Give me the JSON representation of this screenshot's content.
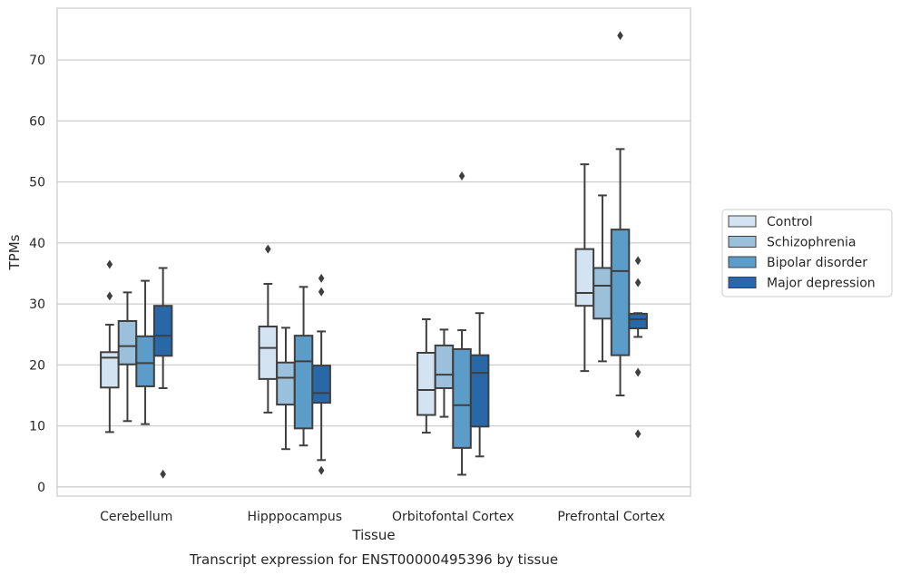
{
  "chart_data": {
    "type": "boxplot",
    "title": "",
    "caption": "Transcript expression for ENST00000495396 by tissue",
    "xlabel": "Tissue",
    "ylabel": "TPMs",
    "ylim": [
      -1.5,
      78.5
    ],
    "yticks": [
      0,
      10,
      20,
      30,
      40,
      50,
      60,
      70
    ],
    "grid": "horizontal",
    "legend_position": "right",
    "categories": [
      "Cerebellum",
      "Hipppocampus",
      "Orbitofontal Cortex",
      "Prefrontal Cortex"
    ],
    "series": [
      {
        "name": "Control",
        "color": "#d3e3f2",
        "boxes": [
          {
            "whislo": 9.0,
            "q1": 16.3,
            "med": 21.2,
            "q3": 22.1,
            "whishi": 26.6,
            "fliers": [
              31.3,
              36.5
            ]
          },
          {
            "whislo": 12.2,
            "q1": 17.7,
            "med": 22.8,
            "q3": 26.3,
            "whishi": 33.3,
            "fliers": [
              39.0
            ]
          },
          {
            "whislo": 8.9,
            "q1": 11.8,
            "med": 15.9,
            "q3": 22.0,
            "whishi": 27.5,
            "fliers": []
          },
          {
            "whislo": 19.0,
            "q1": 29.7,
            "med": 31.8,
            "q3": 39.0,
            "whishi": 52.9,
            "fliers": []
          }
        ]
      },
      {
        "name": "Schizophrenia",
        "color": "#9ac0db",
        "boxes": [
          {
            "whislo": 10.8,
            "q1": 20.1,
            "med": 23.1,
            "q3": 27.2,
            "whishi": 31.9,
            "fliers": []
          },
          {
            "whislo": 6.2,
            "q1": 13.5,
            "med": 17.9,
            "q3": 20.4,
            "whishi": 26.1,
            "fliers": []
          },
          {
            "whislo": 11.5,
            "q1": 16.2,
            "med": 18.4,
            "q3": 23.2,
            "whishi": 25.8,
            "fliers": []
          },
          {
            "whislo": 20.6,
            "q1": 27.6,
            "med": 33.0,
            "q3": 35.9,
            "whishi": 47.8,
            "fliers": []
          }
        ]
      },
      {
        "name": "Bipolar disorder",
        "color": "#5c9cc9",
        "boxes": [
          {
            "whislo": 10.3,
            "q1": 16.5,
            "med": 20.3,
            "q3": 24.7,
            "whishi": 33.8,
            "fliers": []
          },
          {
            "whislo": 6.8,
            "q1": 9.6,
            "med": 20.6,
            "q3": 24.8,
            "whishi": 32.8,
            "fliers": []
          },
          {
            "whislo": 2.0,
            "q1": 6.4,
            "med": 13.4,
            "q3": 22.6,
            "whishi": 25.7,
            "fliers": [
              51.0
            ]
          },
          {
            "whislo": 15.0,
            "q1": 21.6,
            "med": 35.4,
            "q3": 42.2,
            "whishi": 55.4,
            "fliers": [
              74.0
            ]
          }
        ]
      },
      {
        "name": "Major depression",
        "color": "#2968a8",
        "boxes": [
          {
            "whislo": 16.2,
            "q1": 21.5,
            "med": 24.8,
            "q3": 29.7,
            "whishi": 35.9,
            "fliers": [
              2.1
            ]
          },
          {
            "whislo": 4.4,
            "q1": 13.8,
            "med": 15.4,
            "q3": 19.9,
            "whishi": 25.5,
            "fliers": [
              2.7,
              32.0,
              34.2
            ]
          },
          {
            "whislo": 5.0,
            "q1": 9.9,
            "med": 18.7,
            "q3": 21.6,
            "whishi": 28.5,
            "fliers": []
          },
          {
            "whislo": 24.6,
            "q1": 26.0,
            "med": 27.5,
            "q3": 28.4,
            "whishi": 28.5,
            "fliers": [
              8.7,
              18.8,
              33.5,
              37.1
            ]
          }
        ]
      }
    ]
  }
}
